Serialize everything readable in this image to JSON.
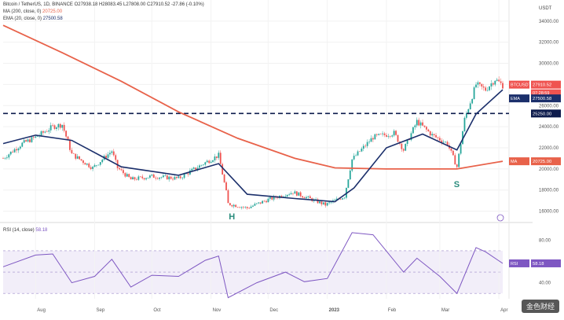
{
  "header": {
    "line1": "Bitcoin / TetherUS, 1D, BINANCE",
    "ohlc": "O27938.18 H28083.45 L27808.00 C27910.52 -27.86 (-0.10%)",
    "ma_label": "MA (200, close, 0)",
    "ma_value": "20725.00",
    "ema_label": "EMA (20, close, 0)",
    "ema_value": "27500.58",
    "rsi_label": "RSI (14, close)",
    "rsi_value": "58.18"
  },
  "price_axis": {
    "unit": "USDT",
    "ticks": [
      34000,
      32000,
      30000,
      28000,
      26000,
      24000,
      22000,
      20000,
      18000,
      16000
    ],
    "tick_labels": [
      "34000.00",
      "32000.00",
      "30000.00",
      "28000.00",
      "26000.00",
      "24000.00",
      "22000.00",
      "20000.00",
      "18000.00",
      "16000.00"
    ]
  },
  "rsi_axis": {
    "ticks": [
      80,
      60,
      40
    ],
    "tick_labels": [
      "80.00",
      "60.00",
      "40.00"
    ]
  },
  "x_axis": {
    "labels": [
      "Aug",
      "Sep",
      "Oct",
      "Nov",
      "Dec",
      "2023",
      "Feb",
      "Mar",
      "Apr"
    ]
  },
  "tags": {
    "price_tag": "BTCUSDT",
    "price_value": "27910.52",
    "countdown": "07:28:59",
    "ema_tag": "EMA",
    "ema_value": "27500.58",
    "level_value": "25250.00",
    "ma_tag": "MA",
    "ma_value": "20725.00",
    "rsi_tag": "RSI",
    "rsi_value": "58.18"
  },
  "annotations": {
    "head": "H",
    "shoulder": "S"
  },
  "watermark": "金色财经",
  "colors": {
    "up": "#26a69a",
    "down": "#ef5350",
    "ema": "#1b2f6b",
    "ma": "#e8624a",
    "rsi": "#7e57c2",
    "level": "#0d1b4c"
  },
  "chart_data": [
    {
      "type": "candlestick",
      "x_labels": [
        "Aug",
        "Sep",
        "Oct",
        "Nov",
        "Dec",
        "2023",
        "Feb",
        "Mar",
        "Apr"
      ],
      "close_path": [
        [
          "2022-07-15",
          21000
        ],
        [
          "2022-07-25",
          22400
        ],
        [
          "2022-08-01",
          23000
        ],
        [
          "2022-08-10",
          24000
        ],
        [
          "2022-08-15",
          24200
        ],
        [
          "2022-08-20",
          21400
        ],
        [
          "2022-08-31",
          20100
        ],
        [
          "2022-09-10",
          21700
        ],
        [
          "2022-09-13",
          20100
        ],
        [
          "2022-09-20",
          19000
        ],
        [
          "2022-10-01",
          19300
        ],
        [
          "2022-10-15",
          19100
        ],
        [
          "2022-10-29",
          20600
        ],
        [
          "2022-11-05",
          21300
        ],
        [
          "2022-11-09",
          17800
        ],
        [
          "2022-11-10",
          16700
        ],
        [
          "2022-11-20",
          16300
        ],
        [
          "2022-12-01",
          17100
        ],
        [
          "2022-12-14",
          17800
        ],
        [
          "2022-12-31",
          16600
        ],
        [
          "2023-01-10",
          17400
        ],
        [
          "2023-01-14",
          20900
        ],
        [
          "2023-01-25",
          23000
        ],
        [
          "2023-02-05",
          23400
        ],
        [
          "2023-02-10",
          21800
        ],
        [
          "2023-02-17",
          24500
        ],
        [
          "2023-02-25",
          23200
        ],
        [
          "2023-03-05",
          22400
        ],
        [
          "2023-03-10",
          20200
        ],
        [
          "2023-03-14",
          24700
        ],
        [
          "2023-03-20",
          28000
        ],
        [
          "2023-03-25",
          27500
        ],
        [
          "2023-03-30",
          28500
        ],
        [
          "2023-04-03",
          27910.52
        ]
      ],
      "levels": [
        {
          "value": 25250,
          "style": "dashed"
        }
      ],
      "series": [
        {
          "name": "EMA (20, close, 0)",
          "value": 27500.58,
          "points": [
            [
              "2022-07-15",
              22400
            ],
            [
              "2022-08-01",
              23200
            ],
            [
              "2022-08-20",
              22700
            ],
            [
              "2022-09-15",
              20200
            ],
            [
              "2022-10-15",
              19400
            ],
            [
              "2022-11-05",
              20500
            ],
            [
              "2022-11-20",
              17600
            ],
            [
              "2022-12-15",
              17200
            ],
            [
              "2023-01-05",
              16900
            ],
            [
              "2023-01-15",
              18200
            ],
            [
              "2023-02-01",
              22000
            ],
            [
              "2023-02-20",
              23300
            ],
            [
              "2023-03-10",
              21800
            ],
            [
              "2023-03-20",
              25200
            ],
            [
              "2023-04-03",
              27500.58
            ]
          ]
        },
        {
          "name": "MA (200, close, 0)",
          "value": 20725.0,
          "points": [
            [
              "2022-07-15",
              33600
            ],
            [
              "2022-08-15",
              31000
            ],
            [
              "2022-09-15",
              28300
            ],
            [
              "2022-10-15",
              25400
            ],
            [
              "2022-11-15",
              22900
            ],
            [
              "2022-12-15",
              21000
            ],
            [
              "2023-01-05",
              20100
            ],
            [
              "2023-02-01",
              20000
            ],
            [
              "2023-03-10",
              20000
            ],
            [
              "2023-04-03",
              20725
            ]
          ]
        }
      ],
      "ylim": [
        15000,
        36000
      ],
      "annotations": [
        {
          "text": "H",
          "date": "2022-11-12"
        },
        {
          "text": "S",
          "date": "2023-03-10"
        }
      ]
    },
    {
      "type": "line",
      "name": "RSI (14, close)",
      "points": [
        [
          "2022-07-15",
          55
        ],
        [
          "2022-08-01",
          66
        ],
        [
          "2022-08-10",
          67
        ],
        [
          "2022-08-20",
          40
        ],
        [
          "2022-09-01",
          46
        ],
        [
          "2022-09-10",
          62
        ],
        [
          "2022-09-20",
          36
        ],
        [
          "2022-10-01",
          47
        ],
        [
          "2022-10-15",
          46
        ],
        [
          "2022-10-29",
          61
        ],
        [
          "2022-11-05",
          65
        ],
        [
          "2022-11-10",
          26
        ],
        [
          "2022-11-25",
          40
        ],
        [
          "2022-12-10",
          50
        ],
        [
          "2022-12-20",
          41
        ],
        [
          "2023-01-01",
          44
        ],
        [
          "2023-01-14",
          87
        ],
        [
          "2023-01-25",
          85
        ],
        [
          "2023-02-10",
          50
        ],
        [
          "2023-02-17",
          63
        ],
        [
          "2023-03-01",
          46
        ],
        [
          "2023-03-10",
          30
        ],
        [
          "2023-03-20",
          73
        ],
        [
          "2023-03-25",
          69
        ],
        [
          "2023-04-03",
          58.18
        ]
      ],
      "band": [
        30,
        70
      ],
      "ylim": [
        25,
        95
      ]
    }
  ]
}
